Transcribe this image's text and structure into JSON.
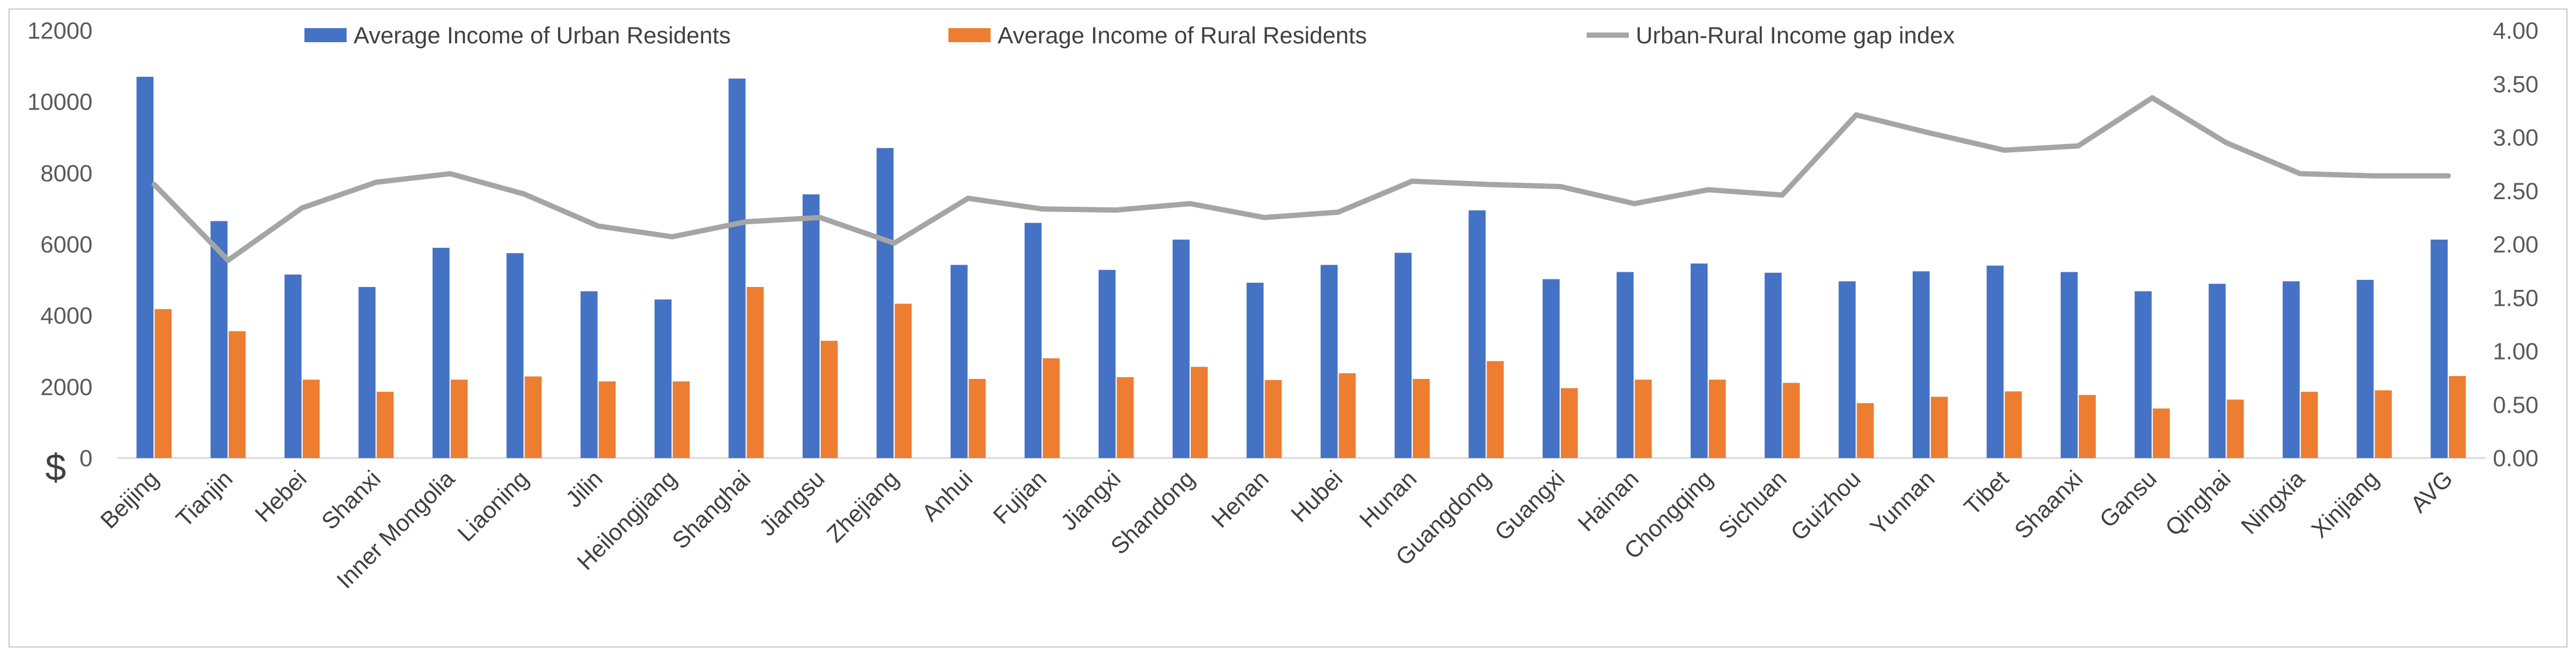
{
  "chart_data": {
    "type": "bar",
    "title": "",
    "ylabel": "$",
    "y2label": "",
    "ylim": [
      0,
      12000
    ],
    "y2lim": [
      0,
      4
    ],
    "y_ticks": [
      "0",
      "2000",
      "4000",
      "6000",
      "8000",
      "10000",
      "12000"
    ],
    "y2_ticks": [
      "0.00",
      "0.50",
      "1.00",
      "1.50",
      "2.00",
      "2.50",
      "3.00",
      "3.50",
      "4.00"
    ],
    "legend_position": "top",
    "categories": [
      "Beijing",
      "Tianjin",
      "Hebei",
      "Shanxi",
      "Inner Mongolia",
      "Liaoning",
      "Jilin",
      "Heilongjiang",
      "Shanghai",
      "Jiangsu",
      "Zhejiang",
      "Anhui",
      "Fujian",
      "Jiangxi",
      "Shandong",
      "Henan",
      "Hubei",
      "Hunan",
      "Guangdong",
      "Guangxi",
      "Hainan",
      "Chongqing",
      "Sichuan",
      "Guizhou",
      "Yunnan",
      "Tibet",
      "Shaanxi",
      "Gansu",
      "Qinghai",
      "Ningxia",
      "Xinjiang",
      "AVG"
    ],
    "series": [
      {
        "name": "Average Income of Urban Residents",
        "type": "bar",
        "axis": "left",
        "color": "#4472C4",
        "values": [
          10700,
          6650,
          5150,
          4800,
          5900,
          5750,
          4680,
          4450,
          10650,
          7400,
          8700,
          5420,
          6600,
          5280,
          6130,
          4920,
          5420,
          5760,
          6950,
          5020,
          5220,
          5460,
          5200,
          4960,
          5240,
          5400,
          5220,
          4680,
          4890,
          4960,
          5000,
          6130
        ]
      },
      {
        "name": "Average Income of Rural Residents",
        "type": "bar",
        "axis": "left",
        "color": "#ED7D31",
        "values": [
          4180,
          3560,
          2200,
          1860,
          2200,
          2290,
          2150,
          2150,
          4800,
          3290,
          4330,
          2220,
          2800,
          2270,
          2560,
          2190,
          2380,
          2220,
          2720,
          1960,
          2200,
          2200,
          2110,
          1540,
          1720,
          1870,
          1770,
          1390,
          1640,
          1860,
          1900,
          2300
        ]
      },
      {
        "name": "Urban-Rural Income gap index",
        "type": "line",
        "axis": "right",
        "color": "#A5A5A5",
        "values": [
          2.56,
          1.85,
          2.34,
          2.58,
          2.66,
          2.47,
          2.17,
          2.07,
          2.21,
          2.25,
          2.01,
          2.43,
          2.33,
          2.32,
          2.38,
          2.25,
          2.3,
          2.59,
          2.56,
          2.54,
          2.38,
          2.51,
          2.46,
          3.21,
          3.04,
          2.88,
          2.92,
          3.37,
          2.95,
          2.66,
          2.64,
          2.64
        ]
      }
    ]
  }
}
